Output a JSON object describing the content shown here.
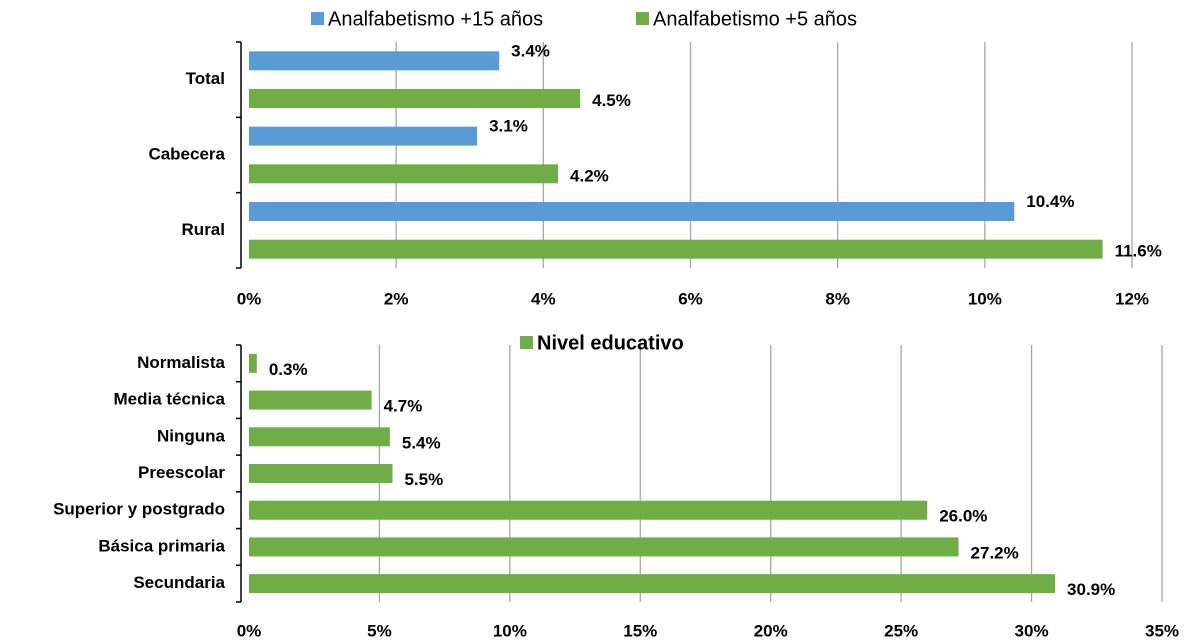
{
  "chart_data": [
    {
      "type": "bar",
      "orientation": "horizontal",
      "categories": [
        "Total",
        "Cabecera",
        "Rural"
      ],
      "series": [
        {
          "name": "Analfabetismo +15 años",
          "color": "#5b9bd5",
          "values": [
            3.4,
            3.1,
            10.4
          ],
          "value_labels": [
            "3.4%",
            "3.1%",
            "10.4%"
          ]
        },
        {
          "name": "Analfabetismo +5 años",
          "color": "#70ad47",
          "values": [
            4.5,
            4.2,
            11.6
          ],
          "value_labels": [
            "4.5%",
            "4.2%",
            "11.6%"
          ]
        }
      ],
      "xlim": [
        0,
        12
      ],
      "xticks": [
        {
          "value": 0,
          "label": "0%"
        },
        {
          "value": 2,
          "label": "2%"
        },
        {
          "value": 4,
          "label": "4%"
        },
        {
          "value": 6,
          "label": "6%"
        },
        {
          "value": 8,
          "label": "8%"
        },
        {
          "value": 10,
          "label": "10%"
        },
        {
          "value": 12,
          "label": "12%"
        }
      ],
      "grid": true,
      "legend": "top"
    },
    {
      "type": "bar",
      "orientation": "horizontal",
      "categories": [
        "Normalista",
        "Media técnica",
        "Ninguna",
        "Preescolar",
        "Superior y postgrado",
        "Básica primaria",
        "Secundaria"
      ],
      "series": [
        {
          "name": "Nivel educativo",
          "color": "#70ad47",
          "values": [
            0.3,
            4.7,
            5.4,
            5.5,
            26.0,
            27.2,
            30.9
          ],
          "value_labels": [
            "0.3%",
            "4.7%",
            "5.4%",
            "5.5%",
            "26.0%",
            "27.2%",
            "30.9%"
          ]
        }
      ],
      "xlim": [
        0,
        35
      ],
      "xticks": [
        {
          "value": 0,
          "label": "0%"
        },
        {
          "value": 5,
          "label": "5%"
        },
        {
          "value": 10,
          "label": "10%"
        },
        {
          "value": 15,
          "label": "15%"
        },
        {
          "value": 20,
          "label": "20%"
        },
        {
          "value": 25,
          "label": "25%"
        },
        {
          "value": 30,
          "label": "30%"
        },
        {
          "value": 35,
          "label": "35%"
        }
      ],
      "grid": true,
      "legend": "top"
    }
  ]
}
